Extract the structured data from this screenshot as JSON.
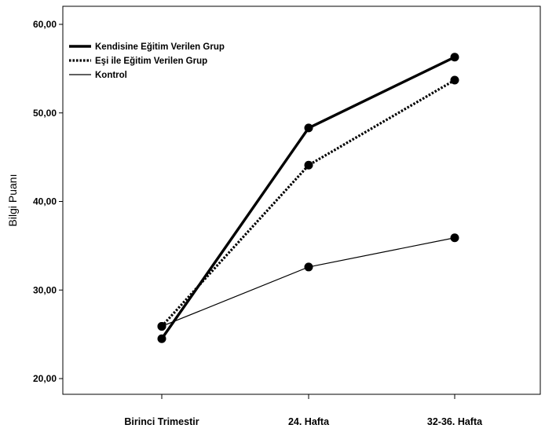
{
  "chart_data": {
    "type": "line",
    "title": "",
    "xlabel": "",
    "ylabel": "Bilgi Puanı",
    "categories": [
      "Birinci Trimestir",
      "24. Hafta",
      "32-36. Hafta"
    ],
    "ylim": [
      20,
      60
    ],
    "yticks": [
      "20,00",
      "30,00",
      "40,00",
      "50,00",
      "60,00"
    ],
    "grid": false,
    "legend_position": "top-left",
    "series": [
      {
        "name": "Kendisine Eğitim Verilen Grup",
        "values": [
          24.5,
          48.3,
          56.3
        ],
        "line_style": "solid-thick",
        "color": "#000000"
      },
      {
        "name": "Eşi ile Eğitim Verilen Grup",
        "values": [
          25.9,
          44.1,
          53.7
        ],
        "line_style": "dotted",
        "color": "#000000"
      },
      {
        "name": "Kontrol",
        "values": [
          25.9,
          32.6,
          35.9
        ],
        "line_style": "solid-thin",
        "color": "#000000"
      }
    ]
  }
}
